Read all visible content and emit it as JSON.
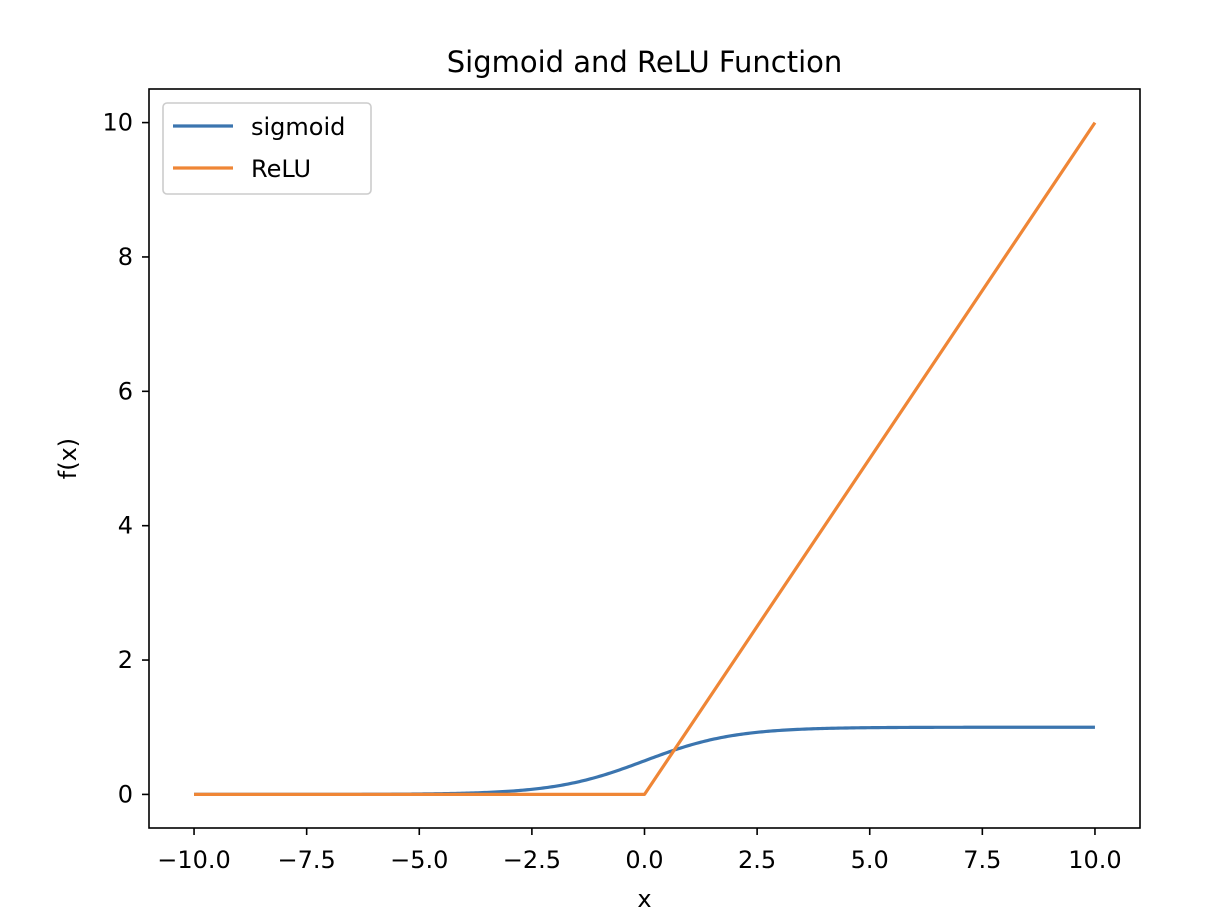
{
  "chart_data": {
    "type": "line",
    "title": "Sigmoid and ReLU Function",
    "xlabel": "x",
    "ylabel": "f(x)",
    "xlim": [
      -11,
      11
    ],
    "ylim": [
      -0.5,
      10.5
    ],
    "xticks": [
      -10,
      -7.5,
      -5,
      -2.5,
      0,
      2.5,
      5,
      7.5,
      10
    ],
    "xtick_labels": [
      "−10.0",
      "−7.5",
      "−5.0",
      "−2.5",
      "0.0",
      "2.5",
      "5.0",
      "7.5",
      "10.0"
    ],
    "yticks": [
      0,
      2,
      4,
      6,
      8,
      10
    ],
    "ytick_labels": [
      "0",
      "2",
      "4",
      "6",
      "8",
      "10"
    ],
    "grid": false,
    "legend_position": "top-left",
    "series": [
      {
        "name": "sigmoid",
        "color": "#3b75af",
        "x": [
          -10,
          -9,
          -8,
          -7,
          -6,
          -5,
          -4,
          -3.5,
          -3,
          -2.5,
          -2,
          -1.5,
          -1,
          -0.5,
          0,
          0.5,
          1,
          1.5,
          2,
          2.5,
          3,
          3.5,
          4,
          5,
          6,
          7,
          8,
          9,
          10
        ],
        "y": [
          4.54e-05,
          0.000123,
          0.000335,
          0.000911,
          0.00247,
          0.00669,
          0.018,
          0.0293,
          0.0474,
          0.0759,
          0.1192,
          0.1824,
          0.2689,
          0.3775,
          0.5,
          0.6225,
          0.7311,
          0.8176,
          0.8808,
          0.9241,
          0.9526,
          0.9707,
          0.982,
          0.9933,
          0.9975,
          0.9991,
          0.9997,
          0.9999,
          1.0
        ]
      },
      {
        "name": "ReLU",
        "color": "#ef8636",
        "x": [
          -10,
          0,
          10
        ],
        "y": [
          0,
          0,
          10
        ]
      }
    ]
  }
}
